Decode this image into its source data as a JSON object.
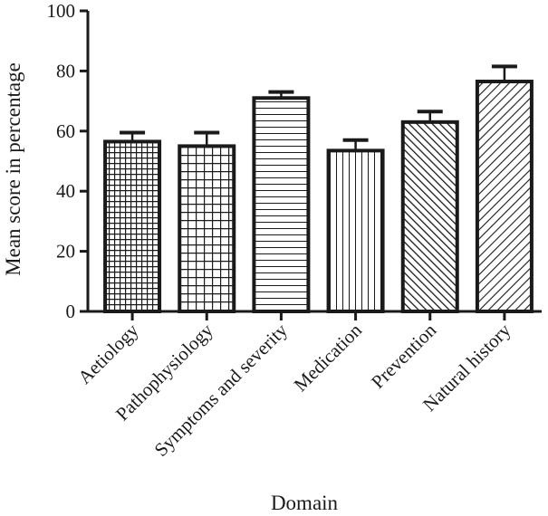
{
  "chart_data": {
    "type": "bar",
    "xlabel": "Domain",
    "ylabel": "Mean score in percentage",
    "ylim": [
      0,
      100
    ],
    "yticks": [
      0,
      20,
      40,
      60,
      80,
      100
    ],
    "grid": false,
    "legend": "none",
    "bar_color": "#1a1a1a",
    "categories": [
      "Aetiology",
      "Pathophysiology",
      "Symptoms and severity",
      "Medication",
      "Prevention",
      "Natural history"
    ],
    "values": [
      56.5,
      55,
      71,
      53.5,
      63,
      76.5
    ],
    "error_upper": [
      59.5,
      59.5,
      73,
      57,
      66.5,
      81.5
    ],
    "patterns": [
      "dense-grid",
      "grid",
      "horizontal-lines",
      "vertical-lines",
      "diagonal-dense",
      "diagonal"
    ]
  }
}
